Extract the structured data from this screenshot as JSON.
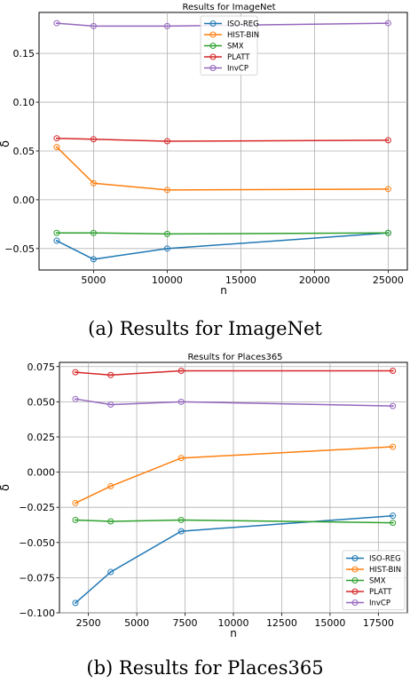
{
  "chart_data": [
    {
      "type": "line",
      "title": "Results for ImageNet",
      "xlabel": "n",
      "ylabel": "δ",
      "xlim": [
        1300,
        26300
      ],
      "ylim": [
        -0.072,
        0.192
      ],
      "xticks": [
        5000,
        10000,
        15000,
        20000,
        25000
      ],
      "xtick_labels": [
        "5000",
        "10000",
        "15000",
        "20000",
        "25000"
      ],
      "yticks": [
        -0.05,
        0.0,
        0.05,
        0.1,
        0.15
      ],
      "ytick_labels": [
        "−0.05",
        "0.00",
        "0.05",
        "0.10",
        "0.15"
      ],
      "grid": true,
      "legend_position": "top-center",
      "x": [
        2500,
        5000,
        10000,
        25000
      ],
      "series": [
        {
          "name": "ISO-REG",
          "color": "#1f77b4",
          "values": [
            -0.042,
            -0.061,
            -0.05,
            -0.034
          ]
        },
        {
          "name": "HIST-BIN",
          "color": "#ff7f0e",
          "values": [
            0.054,
            0.017,
            0.01,
            0.011
          ]
        },
        {
          "name": "SMX",
          "color": "#2ca02c",
          "values": [
            -0.034,
            -0.034,
            -0.035,
            -0.034
          ]
        },
        {
          "name": "PLATT",
          "color": "#d62728",
          "values": [
            0.063,
            0.062,
            0.06,
            0.061
          ]
        },
        {
          "name": "InvCP",
          "color": "#9467bd",
          "values": [
            0.181,
            0.178,
            0.178,
            0.181
          ]
        }
      ],
      "caption": "(a) Results for ImageNet"
    },
    {
      "type": "line",
      "title": "Results for Places365",
      "xlabel": "n",
      "ylabel": "δ",
      "xlim": [
        1000,
        19000
      ],
      "ylim": [
        -0.1,
        0.078
      ],
      "xticks": [
        2500,
        5000,
        7500,
        10000,
        12500,
        15000,
        17500
      ],
      "xtick_labels": [
        "2500",
        "5000",
        "7500",
        "10000",
        "12500",
        "15000",
        "17500"
      ],
      "yticks": [
        -0.1,
        -0.075,
        -0.05,
        -0.025,
        0.0,
        0.025,
        0.05,
        0.075
      ],
      "ytick_labels": [
        "−0.100",
        "−0.075",
        "−0.050",
        "−0.025",
        "0.000",
        "0.025",
        "0.050",
        "0.075"
      ],
      "grid": true,
      "legend_position": "bottom-right",
      "x": [
        1825,
        3650,
        7300,
        18250
      ],
      "series": [
        {
          "name": "ISO-REG",
          "color": "#1f77b4",
          "values": [
            -0.093,
            -0.071,
            -0.042,
            -0.031
          ]
        },
        {
          "name": "HIST-BIN",
          "color": "#ff7f0e",
          "values": [
            -0.022,
            -0.01,
            0.01,
            0.018
          ]
        },
        {
          "name": "SMX",
          "color": "#2ca02c",
          "values": [
            -0.034,
            -0.035,
            -0.034,
            -0.036
          ]
        },
        {
          "name": "PLATT",
          "color": "#d62728",
          "values": [
            0.071,
            0.069,
            0.072,
            0.072
          ]
        },
        {
          "name": "InvCP",
          "color": "#9467bd",
          "values": [
            0.052,
            0.048,
            0.05,
            0.047
          ]
        }
      ],
      "caption": "(b) Results for Places365"
    }
  ]
}
